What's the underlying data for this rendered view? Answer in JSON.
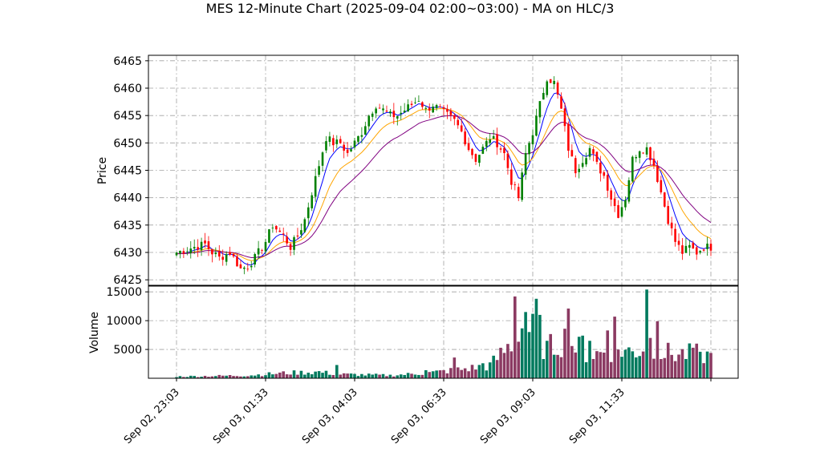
{
  "chart_data": {
    "type": "candlestick",
    "title": "MES 12-Minute Chart (2025-09-04 02:00~03:00) - MA on HLC/3",
    "price_panel": {
      "ylabel": "Price",
      "ylim": [
        6424,
        6466
      ],
      "yticks": [
        6425,
        6430,
        6435,
        6440,
        6445,
        6450,
        6455,
        6460,
        6465
      ],
      "grid": true
    },
    "volume_panel": {
      "ylabel": "Volume",
      "ylim": [
        0,
        16000
      ],
      "yticks": [
        5000,
        10000,
        15000
      ],
      "grid": true
    },
    "x_ticks": [
      "Sep 02, 23:03",
      "Sep 03, 01:33",
      "Sep 03, 04:03",
      "Sep 03, 06:33",
      "Sep 03, 09:03",
      "Sep 03, 11:33"
    ],
    "x_tick_index": [
      0,
      25,
      50,
      75,
      100,
      125
    ],
    "bar_count": 151,
    "close_anchors": [
      [
        0,
        6430
      ],
      [
        5,
        6431
      ],
      [
        8,
        6431.5
      ],
      [
        10,
        6430
      ],
      [
        12,
        6429
      ],
      [
        15,
        6430
      ],
      [
        18,
        6427
      ],
      [
        20,
        6427.5
      ],
      [
        22,
        6429
      ],
      [
        25,
        6432
      ],
      [
        27,
        6435
      ],
      [
        30,
        6433
      ],
      [
        32,
        6431
      ],
      [
        34,
        6433
      ],
      [
        36,
        6436
      ],
      [
        38,
        6441
      ],
      [
        40,
        6446
      ],
      [
        42,
        6451
      ],
      [
        44,
        6450
      ],
      [
        46,
        6450
      ],
      [
        48,
        6448
      ],
      [
        50,
        6450
      ],
      [
        52,
        6452
      ],
      [
        54,
        6455
      ],
      [
        56,
        6457
      ],
      [
        58,
        6456
      ],
      [
        60,
        6455
      ],
      [
        62,
        6455
      ],
      [
        64,
        6456
      ],
      [
        66,
        6457
      ],
      [
        68,
        6458
      ],
      [
        70,
        6456
      ],
      [
        72,
        6457
      ],
      [
        74,
        6456
      ],
      [
        76,
        6455
      ],
      [
        78,
        6454
      ],
      [
        80,
        6452
      ],
      [
        82,
        6449
      ],
      [
        84,
        6447
      ],
      [
        86,
        6449
      ],
      [
        88,
        6451
      ],
      [
        90,
        6450
      ],
      [
        92,
        6448
      ],
      [
        94,
        6443
      ],
      [
        96,
        6440
      ],
      [
        98,
        6448
      ],
      [
        100,
        6452
      ],
      [
        102,
        6457
      ],
      [
        104,
        6462
      ],
      [
        106,
        6461
      ],
      [
        108,
        6456
      ],
      [
        110,
        6449
      ],
      [
        112,
        6445
      ],
      [
        114,
        6447
      ],
      [
        116,
        6449
      ],
      [
        118,
        6446
      ],
      [
        120,
        6444
      ],
      [
        122,
        6440
      ],
      [
        124,
        6437
      ],
      [
        126,
        6440
      ],
      [
        128,
        6447
      ],
      [
        130,
        6449
      ],
      [
        132,
        6449
      ],
      [
        134,
        6446
      ],
      [
        136,
        6441
      ],
      [
        138,
        6436
      ],
      [
        140,
        6432
      ],
      [
        142,
        6430
      ],
      [
        144,
        6431
      ],
      [
        146,
        6430
      ],
      [
        148,
        6431
      ],
      [
        150,
        6431
      ]
    ],
    "volume_anchors": [
      [
        0,
        300
      ],
      [
        20,
        500
      ],
      [
        30,
        900
      ],
      [
        40,
        1100
      ],
      [
        45,
        700
      ],
      [
        60,
        500
      ],
      [
        70,
        900
      ],
      [
        75,
        1200
      ],
      [
        82,
        1700
      ],
      [
        88,
        2200
      ],
      [
        94,
        6000
      ],
      [
        96,
        9000
      ],
      [
        100,
        8000
      ],
      [
        104,
        5000
      ],
      [
        108,
        6500
      ],
      [
        112,
        5500
      ],
      [
        116,
        4000
      ],
      [
        120,
        4500
      ],
      [
        124,
        5000
      ],
      [
        128,
        4500
      ],
      [
        132,
        5500
      ],
      [
        136,
        4500
      ],
      [
        140,
        4200
      ],
      [
        146,
        4200
      ],
      [
        150,
        3800
      ]
    ],
    "volume_spikes": [
      [
        45,
        2300
      ],
      [
        70,
        1400
      ],
      [
        78,
        3600
      ],
      [
        86,
        2600
      ],
      [
        95,
        14200
      ],
      [
        101,
        13800
      ],
      [
        98,
        11500
      ],
      [
        102,
        11000
      ],
      [
        109,
        8600
      ],
      [
        110,
        12100
      ],
      [
        114,
        7400
      ],
      [
        116,
        6500
      ],
      [
        121,
        8300
      ],
      [
        123,
        10700
      ],
      [
        132,
        15400
      ],
      [
        133,
        7000
      ],
      [
        135,
        9900
      ],
      [
        145,
        5300
      ],
      [
        147,
        4600
      ]
    ],
    "moving_averages": [
      {
        "type": "fast",
        "color": "#0000ff"
      },
      {
        "type": "medium",
        "color": "#ffa500"
      },
      {
        "type": "slow",
        "color": "#800080"
      }
    ],
    "up_color": "#008000",
    "down_color": "#ff0000",
    "volume_up_color": "#007a5e",
    "volume_down_color": "#8b3a62"
  }
}
